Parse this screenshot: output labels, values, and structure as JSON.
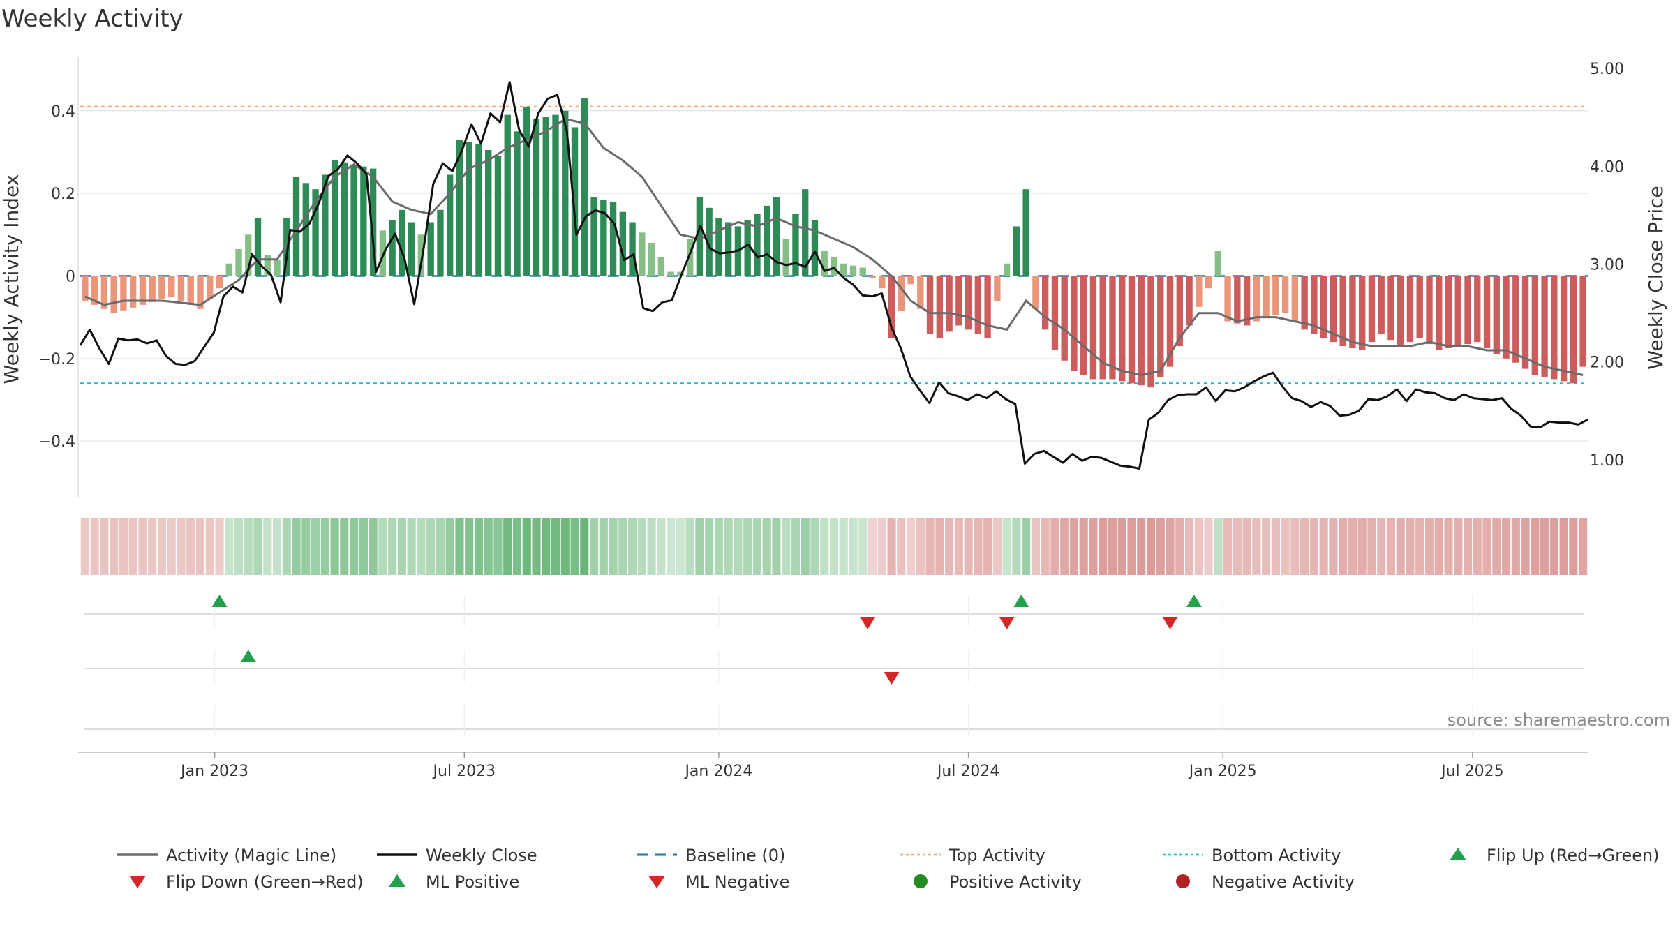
{
  "title": "Weekly Activity",
  "source": "source: sharemaestro.com",
  "colors": {
    "pos_strong": "#2e8b57",
    "pos_weak": "#86bf86",
    "neg_strong": "#cd5c5c",
    "neg_weak": "#e9967a",
    "magic_line": "#6b6b6b",
    "close_line": "#111111",
    "baseline": "#1f77b4",
    "top_line": "#f4a460",
    "bottom_line": "#17becf",
    "marker_up": "#22a04b",
    "marker_down": "#d62728",
    "dot_pos": "#228b22",
    "dot_neg": "#b22222",
    "grid": "#e5e5e5"
  },
  "chart_data": {
    "type": "bar+line",
    "title": "Weekly Activity",
    "ylabel": "Weekly Activity Index",
    "ylabel_right": "Weekly Close Price",
    "ylim": [
      -0.54,
      0.55
    ],
    "ylim_right": [
      0.6,
      5.2
    ],
    "yticks": [
      0.4,
      0.2,
      0,
      -0.2,
      -0.4
    ],
    "ytick_labels": [
      "0.4",
      "0.2",
      "0",
      "−0.2",
      "−0.4"
    ],
    "yticks_right": [
      5.0,
      4.0,
      3.0,
      2.0,
      1.0
    ],
    "ytick_labels_right": [
      "5.00",
      "4.00",
      "3.00",
      "2.00",
      "1.00"
    ],
    "x_start": "2022-09-26",
    "weeks": 157,
    "xticks": [
      {
        "label": "Jan 2023",
        "week": 14
      },
      {
        "label": "Jul 2023",
        "week": 40
      },
      {
        "label": "Jan 2024",
        "week": 66.5
      },
      {
        "label": "Jul 2024",
        "week": 92.5
      },
      {
        "label": "Jan 2025",
        "week": 119
      },
      {
        "label": "Jul 2025",
        "week": 145
      }
    ],
    "top_activity": 0.41,
    "bottom_activity": -0.26,
    "activity_keypoints": [
      [
        0,
        -0.06
      ],
      [
        3,
        -0.09
      ],
      [
        6,
        -0.07
      ],
      [
        9,
        -0.05
      ],
      [
        12,
        -0.08
      ],
      [
        14,
        -0.03
      ],
      [
        15,
        0.03
      ],
      [
        17,
        0.1
      ],
      [
        18,
        0.14
      ],
      [
        19,
        0.05
      ],
      [
        20,
        0.04
      ],
      [
        22,
        0.24
      ],
      [
        24,
        0.21
      ],
      [
        26,
        0.28
      ],
      [
        28,
        0.27
      ],
      [
        30,
        0.26
      ],
      [
        31,
        0.11
      ],
      [
        33,
        0.16
      ],
      [
        35,
        0.1
      ],
      [
        37,
        0.16
      ],
      [
        39,
        0.33
      ],
      [
        41,
        0.32
      ],
      [
        43,
        0.29
      ],
      [
        44,
        0.39
      ],
      [
        45,
        0.35
      ],
      [
        46,
        0.41
      ],
      [
        47,
        0.38
      ],
      [
        49,
        0.39
      ],
      [
        50,
        0.4
      ],
      [
        51,
        0.36
      ],
      [
        52,
        0.43
      ],
      [
        53,
        0.19
      ],
      [
        55,
        0.18
      ],
      [
        57,
        0.13
      ],
      [
        59,
        0.08
      ],
      [
        61,
        0.01
      ],
      [
        62,
        0.01
      ],
      [
        63,
        0.09
      ],
      [
        64,
        0.19
      ],
      [
        66,
        0.14
      ],
      [
        68,
        0.12
      ],
      [
        70,
        0.15
      ],
      [
        72,
        0.19
      ],
      [
        73,
        0.09
      ],
      [
        75,
        0.21
      ],
      [
        77,
        0.06
      ],
      [
        79,
        0.03
      ],
      [
        81,
        0.02
      ],
      [
        83,
        -0.03
      ],
      [
        84,
        -0.15
      ],
      [
        86,
        -0.02
      ],
      [
        88,
        -0.14
      ],
      [
        89,
        -0.15
      ],
      [
        91,
        -0.12
      ],
      [
        94,
        -0.15
      ],
      [
        98,
        0.21
      ],
      [
        99,
        -0.08
      ],
      [
        101,
        -0.18
      ],
      [
        103,
        -0.23
      ],
      [
        105,
        -0.25
      ],
      [
        107,
        -0.25
      ],
      [
        109,
        -0.26
      ],
      [
        111,
        -0.27
      ],
      [
        113,
        -0.22
      ],
      [
        115,
        -0.12
      ],
      [
        117,
        -0.03
      ],
      [
        118,
        0.06
      ],
      [
        119,
        -0.11
      ],
      [
        121,
        -0.12
      ],
      [
        123,
        -0.1
      ],
      [
        125,
        -0.09
      ],
      [
        127,
        -0.13
      ],
      [
        129,
        -0.15
      ],
      [
        131,
        -0.17
      ],
      [
        133,
        -0.18
      ],
      [
        135,
        -0.14
      ],
      [
        137,
        -0.17
      ],
      [
        139,
        -0.15
      ],
      [
        141,
        -0.18
      ],
      [
        143,
        -0.17
      ],
      [
        145,
        -0.16
      ],
      [
        147,
        -0.19
      ],
      [
        149,
        -0.21
      ],
      [
        151,
        -0.24
      ],
      [
        153,
        -0.25
      ],
      [
        155,
        -0.26
      ],
      [
        156,
        -0.22
      ]
    ],
    "magic_keypoints": [
      [
        0,
        -0.05
      ],
      [
        2,
        -0.07
      ],
      [
        4,
        -0.06
      ],
      [
        8,
        -0.06
      ],
      [
        12,
        -0.07
      ],
      [
        14,
        -0.04
      ],
      [
        16,
        -0.01
      ],
      [
        18,
        0.04
      ],
      [
        20,
        0.04
      ],
      [
        22,
        0.11
      ],
      [
        24,
        0.18
      ],
      [
        26,
        0.24
      ],
      [
        28,
        0.27
      ],
      [
        30,
        0.24
      ],
      [
        32,
        0.18
      ],
      [
        34,
        0.16
      ],
      [
        36,
        0.15
      ],
      [
        38,
        0.2
      ],
      [
        40,
        0.26
      ],
      [
        42,
        0.28
      ],
      [
        44,
        0.31
      ],
      [
        46,
        0.33
      ],
      [
        48,
        0.35
      ],
      [
        50,
        0.38
      ],
      [
        52,
        0.37
      ],
      [
        54,
        0.31
      ],
      [
        56,
        0.28
      ],
      [
        58,
        0.24
      ],
      [
        60,
        0.17
      ],
      [
        62,
        0.1
      ],
      [
        64,
        0.09
      ],
      [
        66,
        0.11
      ],
      [
        68,
        0.13
      ],
      [
        70,
        0.12
      ],
      [
        72,
        0.14
      ],
      [
        74,
        0.12
      ],
      [
        76,
        0.11
      ],
      [
        78,
        0.09
      ],
      [
        80,
        0.07
      ],
      [
        82,
        0.04
      ],
      [
        84,
        0.0
      ],
      [
        86,
        -0.06
      ],
      [
        88,
        -0.09
      ],
      [
        90,
        -0.09
      ],
      [
        92,
        -0.1
      ],
      [
        94,
        -0.12
      ],
      [
        96,
        -0.13
      ],
      [
        98,
        -0.06
      ],
      [
        100,
        -0.1
      ],
      [
        102,
        -0.13
      ],
      [
        104,
        -0.17
      ],
      [
        106,
        -0.21
      ],
      [
        108,
        -0.23
      ],
      [
        110,
        -0.24
      ],
      [
        112,
        -0.23
      ],
      [
        114,
        -0.15
      ],
      [
        116,
        -0.09
      ],
      [
        118,
        -0.09
      ],
      [
        120,
        -0.11
      ],
      [
        122,
        -0.1
      ],
      [
        124,
        -0.1
      ],
      [
        126,
        -0.11
      ],
      [
        128,
        -0.12
      ],
      [
        130,
        -0.14
      ],
      [
        132,
        -0.16
      ],
      [
        134,
        -0.17
      ],
      [
        136,
        -0.17
      ],
      [
        138,
        -0.17
      ],
      [
        140,
        -0.16
      ],
      [
        142,
        -0.17
      ],
      [
        144,
        -0.17
      ],
      [
        146,
        -0.18
      ],
      [
        148,
        -0.18
      ],
      [
        150,
        -0.2
      ],
      [
        152,
        -0.22
      ],
      [
        154,
        -0.23
      ],
      [
        156,
        -0.24
      ]
    ],
    "close_keypoints": [
      [
        0,
        2.17
      ],
      [
        1,
        2.33
      ],
      [
        2,
        2.14
      ],
      [
        3,
        1.98
      ],
      [
        4,
        2.24
      ],
      [
        5,
        2.22
      ],
      [
        6,
        2.23
      ],
      [
        7,
        2.19
      ],
      [
        8,
        2.22
      ],
      [
        9,
        2.06
      ],
      [
        10,
        1.98
      ],
      [
        11,
        1.97
      ],
      [
        12,
        2.01
      ],
      [
        14,
        2.3
      ],
      [
        15,
        2.67
      ],
      [
        16,
        2.77
      ],
      [
        17,
        2.71
      ],
      [
        18,
        3.1
      ],
      [
        19,
        2.98
      ],
      [
        20,
        2.89
      ],
      [
        21,
        2.61
      ],
      [
        22,
        3.35
      ],
      [
        23,
        3.33
      ],
      [
        24,
        3.41
      ],
      [
        25,
        3.62
      ],
      [
        26,
        3.9
      ],
      [
        27,
        3.97
      ],
      [
        28,
        4.11
      ],
      [
        29,
        4.03
      ],
      [
        30,
        3.92
      ],
      [
        31,
        2.92
      ],
      [
        32,
        3.15
      ],
      [
        33,
        3.31
      ],
      [
        34,
        3.05
      ],
      [
        35,
        2.59
      ],
      [
        36,
        3.17
      ],
      [
        37,
        3.82
      ],
      [
        38,
        4.03
      ],
      [
        39,
        3.95
      ],
      [
        40,
        4.16
      ],
      [
        41,
        4.43
      ],
      [
        42,
        4.23
      ],
      [
        43,
        4.54
      ],
      [
        44,
        4.45
      ],
      [
        45,
        4.86
      ],
      [
        46,
        4.37
      ],
      [
        47,
        4.2
      ],
      [
        48,
        4.54
      ],
      [
        49,
        4.69
      ],
      [
        50,
        4.73
      ],
      [
        51,
        4.36
      ],
      [
        52,
        3.3
      ],
      [
        53,
        3.49
      ],
      [
        54,
        3.55
      ],
      [
        55,
        3.52
      ],
      [
        56,
        3.41
      ],
      [
        57,
        3.04
      ],
      [
        58,
        3.1
      ],
      [
        59,
        2.55
      ],
      [
        60,
        2.52
      ],
      [
        61,
        2.61
      ],
      [
        62,
        2.63
      ],
      [
        63,
        2.89
      ],
      [
        64,
        3.13
      ],
      [
        65,
        3.39
      ],
      [
        66,
        3.16
      ],
      [
        67,
        3.11
      ],
      [
        68,
        3.12
      ],
      [
        69,
        3.14
      ],
      [
        70,
        3.2
      ],
      [
        71,
        3.07
      ],
      [
        72,
        3.1
      ],
      [
        73,
        3.02
      ],
      [
        74,
        2.99
      ],
      [
        75,
        3.01
      ],
      [
        76,
        2.97
      ],
      [
        77,
        3.13
      ],
      [
        78,
        2.93
      ],
      [
        79,
        2.96
      ],
      [
        80,
        2.86
      ],
      [
        81,
        2.79
      ],
      [
        82,
        2.68
      ],
      [
        83,
        2.67
      ],
      [
        84,
        2.7
      ],
      [
        85,
        2.36
      ],
      [
        86,
        2.14
      ],
      [
        87,
        1.85
      ],
      [
        88,
        1.71
      ],
      [
        89,
        1.58
      ],
      [
        90,
        1.79
      ],
      [
        91,
        1.68
      ],
      [
        92,
        1.65
      ],
      [
        93,
        1.61
      ],
      [
        94,
        1.67
      ],
      [
        95,
        1.63
      ],
      [
        96,
        1.7
      ],
      [
        97,
        1.62
      ],
      [
        98,
        1.57
      ],
      [
        99,
        0.96
      ],
      [
        100,
        1.06
      ],
      [
        101,
        1.09
      ],
      [
        102,
        1.03
      ],
      [
        103,
        0.97
      ],
      [
        104,
        1.06
      ],
      [
        105,
        0.99
      ],
      [
        106,
        1.03
      ],
      [
        107,
        1.02
      ],
      [
        108,
        0.98
      ],
      [
        109,
        0.94
      ],
      [
        110,
        0.93
      ],
      [
        111,
        0.91
      ],
      [
        112,
        1.41
      ],
      [
        113,
        1.48
      ],
      [
        114,
        1.61
      ],
      [
        115,
        1.66
      ],
      [
        116,
        1.67
      ],
      [
        117,
        1.67
      ],
      [
        118,
        1.74
      ],
      [
        119,
        1.6
      ],
      [
        120,
        1.71
      ],
      [
        121,
        1.7
      ],
      [
        122,
        1.74
      ],
      [
        123,
        1.8
      ],
      [
        124,
        1.85
      ],
      [
        125,
        1.89
      ],
      [
        126,
        1.75
      ],
      [
        127,
        1.63
      ],
      [
        128,
        1.6
      ],
      [
        129,
        1.54
      ],
      [
        130,
        1.59
      ],
      [
        131,
        1.55
      ],
      [
        132,
        1.45
      ],
      [
        133,
        1.46
      ],
      [
        134,
        1.5
      ],
      [
        135,
        1.62
      ],
      [
        136,
        1.61
      ],
      [
        137,
        1.65
      ],
      [
        138,
        1.72
      ],
      [
        139,
        1.6
      ],
      [
        140,
        1.72
      ],
      [
        141,
        1.69
      ],
      [
        142,
        1.68
      ],
      [
        143,
        1.63
      ],
      [
        144,
        1.61
      ],
      [
        145,
        1.67
      ],
      [
        146,
        1.63
      ],
      [
        147,
        1.62
      ],
      [
        148,
        1.61
      ],
      [
        149,
        1.63
      ],
      [
        150,
        1.52
      ],
      [
        151,
        1.45
      ],
      [
        152,
        1.34
      ],
      [
        153,
        1.33
      ],
      [
        154,
        1.39
      ],
      [
        155,
        1.38
      ],
      [
        156,
        1.38
      ],
      [
        157,
        1.36
      ],
      [
        158,
        1.41
      ]
    ],
    "markers": {
      "flip_up": [
        14.5,
        98,
        116
      ],
      "flip_down": [
        82,
        96.5,
        113.5
      ],
      "ml_positive": [
        17.5
      ],
      "ml_negative": [
        84.5
      ]
    }
  },
  "legend": [
    {
      "label": "Activity (Magic Line)",
      "kind": "line",
      "color": "#6b6b6b"
    },
    {
      "label": "Weekly Close",
      "kind": "line",
      "color": "#111111"
    },
    {
      "label": "Baseline (0)",
      "kind": "dash",
      "color": "#1f77b4"
    },
    {
      "label": "Top Activity",
      "kind": "dot",
      "color": "#f4a460"
    },
    {
      "label": "Bottom Activity",
      "kind": "dot",
      "color": "#17becf"
    },
    {
      "label": "Flip Up (Red→Green)",
      "kind": "tri-up",
      "color": "#22a04b"
    },
    {
      "label": "Flip Down (Green→Red)",
      "kind": "tri-down",
      "color": "#d62728"
    },
    {
      "label": "ML Positive",
      "kind": "tri-up",
      "color": "#22a04b"
    },
    {
      "label": "ML Negative",
      "kind": "tri-down",
      "color": "#d62728"
    },
    {
      "label": "Positive Activity",
      "kind": "circle",
      "color": "#228b22"
    },
    {
      "label": "Negative Activity",
      "kind": "circle",
      "color": "#b22222"
    }
  ]
}
